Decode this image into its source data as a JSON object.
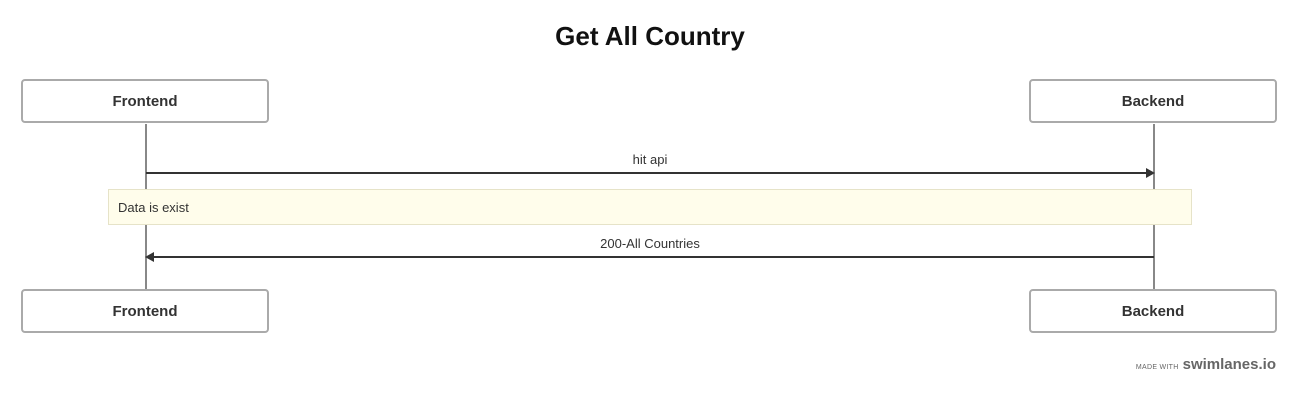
{
  "diagram": {
    "title": "Get All Country",
    "participants": [
      {
        "id": "frontend",
        "label": "Frontend"
      },
      {
        "id": "backend",
        "label": "Backend"
      }
    ],
    "steps": [
      {
        "type": "message",
        "from": "frontend",
        "to": "backend",
        "label": "hit api"
      },
      {
        "type": "note",
        "label": "Data is exist"
      },
      {
        "type": "message",
        "from": "backend",
        "to": "frontend",
        "label": "200-All Countries"
      }
    ],
    "colors": {
      "lifeline": "#888888",
      "arrow": "#333333",
      "note_bg": "#fffdeb",
      "box_border": "#aaaaaa"
    }
  },
  "footer": {
    "made_with": "MADE WITH",
    "brand": "swimlanes.io"
  }
}
